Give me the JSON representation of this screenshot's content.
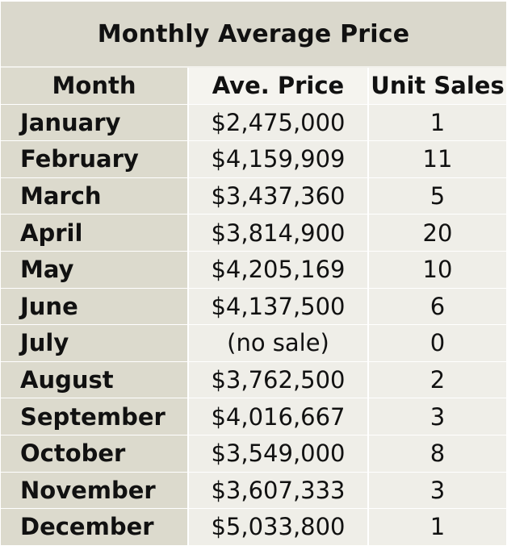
{
  "chart_data": {
    "type": "table",
    "title": "Monthly Average Price",
    "columns": [
      "Month",
      "Ave. Price",
      "Unit Sales"
    ],
    "rows": [
      {
        "month": "January",
        "price": "$2,475,000",
        "units": "1"
      },
      {
        "month": "February",
        "price": "$4,159,909",
        "units": "11"
      },
      {
        "month": "March",
        "price": "$3,437,360",
        "units": "5"
      },
      {
        "month": "April",
        "price": "$3,814,900",
        "units": "20"
      },
      {
        "month": "May",
        "price": "$4,205,169",
        "units": "10"
      },
      {
        "month": "June",
        "price": "$4,137,500",
        "units": "6"
      },
      {
        "month": "July",
        "price": "(no sale)",
        "units": "0"
      },
      {
        "month": "August",
        "price": "$3,762,500",
        "units": "2"
      },
      {
        "month": "September",
        "price": "$4,016,667",
        "units": "3"
      },
      {
        "month": "October",
        "price": "$3,549,000",
        "units": "8"
      },
      {
        "month": "November",
        "price": "$3,607,333",
        "units": "3"
      },
      {
        "month": "December",
        "price": "$5,033,800",
        "units": "1"
      }
    ]
  },
  "colors": {
    "title_band": "#dad8cc",
    "month_column": "#dcdacd",
    "data_cells": "#efeee8",
    "header_cells": "#f5f4ef",
    "divider": "#ffffff"
  }
}
